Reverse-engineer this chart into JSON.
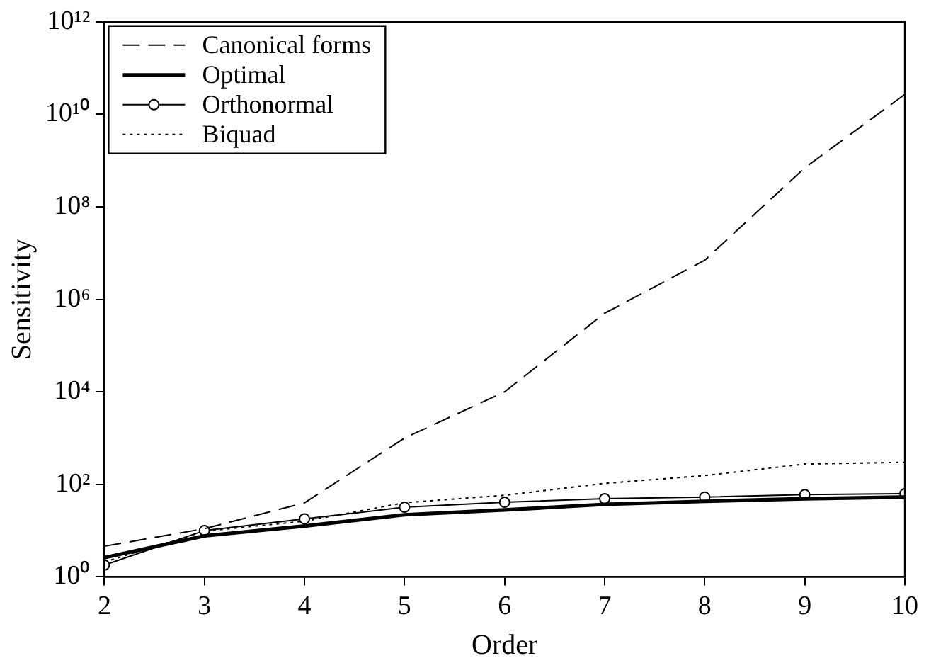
{
  "chart_data": {
    "type": "line",
    "xlabel": "Order",
    "ylabel": "Sensitivity",
    "x": [
      2,
      3,
      4,
      5,
      6,
      7,
      8,
      9,
      10
    ],
    "log": "y",
    "xlim": [
      2,
      10
    ],
    "xticks": [
      2,
      3,
      4,
      5,
      6,
      7,
      8,
      9,
      10
    ],
    "ylim": [
      1,
      1000000000000.0
    ],
    "yticks": [
      {
        "value": 1,
        "label": "10⁰"
      },
      {
        "value": 100,
        "label": "10²"
      },
      {
        "value": 10000,
        "label": "10⁴"
      },
      {
        "value": 1000000,
        "label": "10⁶"
      },
      {
        "value": 100000000,
        "label": "10⁸"
      },
      {
        "value": 10000000000,
        "label": "10¹⁰"
      },
      {
        "value": 1000000000000,
        "label": "10¹²"
      }
    ],
    "grid": false,
    "legend": "top left",
    "series": [
      {
        "name": "Canonical forms",
        "color": "#000000",
        "line_style": "dashed",
        "marker": "none",
        "values": [
          4.6,
          11,
          40,
          1000,
          10000,
          500000,
          7000000,
          700000000,
          27000000000
        ]
      },
      {
        "name": "Optimal",
        "color": "#000000",
        "line_style": "solid",
        "marker": "none",
        "values": [
          2.6,
          7.7,
          12.6,
          22,
          28,
          37,
          43,
          49,
          53
        ]
      },
      {
        "name": "Orthonormal",
        "color": "#000000",
        "line_style": "solid",
        "marker": "circle",
        "values": [
          1.8,
          10,
          18,
          32,
          41,
          49,
          53,
          60,
          63
        ]
      },
      {
        "name": "Biquad",
        "color": "#000000",
        "line_style": "dotted",
        "marker": "none",
        "values": [
          2.1,
          9.7,
          16,
          40,
          58,
          105,
          155,
          275,
          300
        ]
      }
    ]
  }
}
